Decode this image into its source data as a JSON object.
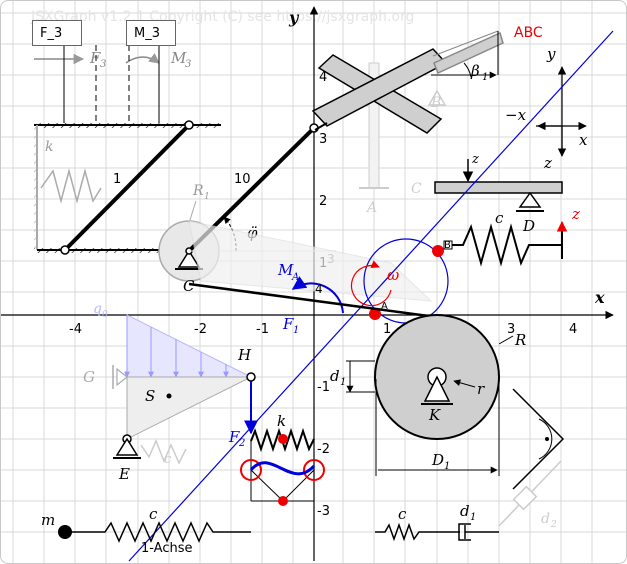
{
  "copyright": "JSXGraph v1.2.1 Copyright (C) see https://jsxgraph.org",
  "inputs": {
    "force": "F_3",
    "moment": "M_3"
  },
  "axes": {
    "x_name": "x",
    "y_name": "y",
    "x_ticks": [
      "-4",
      "-3",
      "-2",
      "-1",
      "1",
      "2",
      "3",
      "4"
    ],
    "y_ticks": [
      "4",
      "3",
      "2",
      "1",
      "-1",
      "-2",
      "-3"
    ]
  },
  "labels": {
    "F3": "F",
    "F3_sub": "3",
    "M3": "M",
    "M3_sub": "3",
    "k_spring": "k",
    "one": "1",
    "ten": "10",
    "R1": "R",
    "R1_sub": "1",
    "phi_ddot": "φ̈",
    "C": "C",
    "B": "B",
    "A_wall": "A",
    "C_wall": "C",
    "beta1": "β",
    "beta1_sub": "1",
    "abc": "ABC",
    "y_small": "y",
    "minus_x": "−x",
    "x_small": "x",
    "z_small": "z",
    "z_small2": "z",
    "z_top": "z",
    "c_spring": "c",
    "D": "D",
    "z_red": "z",
    "B_pt": "B",
    "MA": "M",
    "MA_sub": "A",
    "omega": "ω",
    "A_pt": "A",
    "F1": "F",
    "F1_sub": "1",
    "four": "4",
    "three_grey": "3",
    "R_circle": "R",
    "r_small": "r",
    "K": "K",
    "d1": "d",
    "d1_sub": "1",
    "D1": "D",
    "D1_sub": "1",
    "q0": "q",
    "q0_sub": "0",
    "G": "G",
    "S": "S",
    "H": "H",
    "E": "E",
    "c_grey": "c",
    "F2": "F",
    "F2_sub": "2",
    "k_small": "k",
    "m": "m",
    "c_bottom": "c",
    "achse": "1-Achse",
    "c_damper": "c",
    "d1_damper": "d",
    "d1_damper_sub": "1",
    "d2": "d",
    "d2_sub": "2"
  },
  "colors": {
    "blue": "#0000dd",
    "red": "#ee0000",
    "grey_fill": "#cfcfcf",
    "light_blue": "#b8b8ff"
  }
}
